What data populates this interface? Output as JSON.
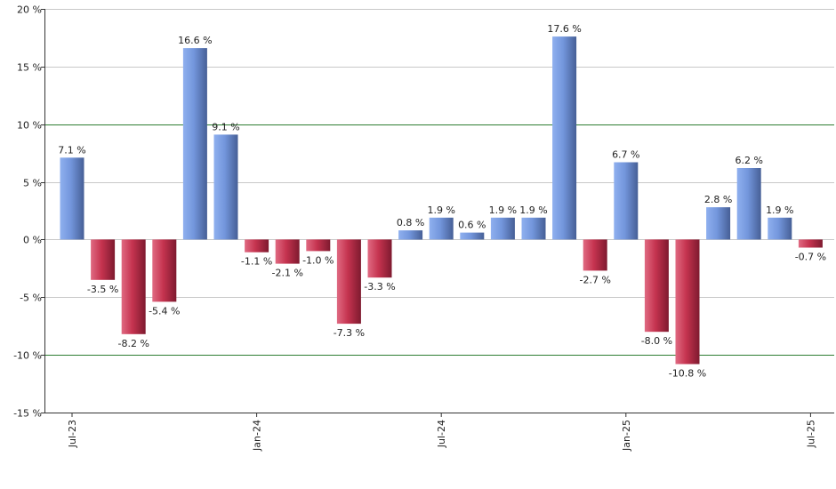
{
  "chart_data": {
    "type": "bar",
    "title": "",
    "xlabel": "",
    "ylabel": "",
    "ylim": [
      -15,
      20
    ],
    "y_ticks": [
      20,
      15,
      10,
      5,
      0,
      -5,
      -10,
      -15
    ],
    "y_tick_suffix": " %",
    "grid": true,
    "highlight_lines": [
      10,
      -10
    ],
    "x_tick_labels": [
      "Jul-23",
      "Jan-24",
      "Jul-24",
      "Jan-25",
      "Jul-25"
    ],
    "x_tick_positions": [
      0,
      6,
      12,
      18,
      24
    ],
    "values": [
      7.1,
      -3.5,
      -8.2,
      -5.4,
      16.6,
      9.1,
      -1.1,
      -2.1,
      -1.0,
      -7.3,
      -3.3,
      0.8,
      1.9,
      0.6,
      1.9,
      1.9,
      17.6,
      -2.7,
      6.7,
      -8.0,
      -10.8,
      2.8,
      6.2,
      1.9,
      -0.7
    ],
    "labels": [
      "7.1 %",
      "-3.5 %",
      "-8.2 %",
      "-5.4 %",
      "16.6 %",
      "9.1 %",
      "-1.1 %",
      "-2.1 %",
      "-1.0 %",
      "-7.3 %",
      "-3.3 %",
      "0.8 %",
      "1.9 %",
      "0.6 %",
      "1.9 %",
      "1.9 %",
      "17.6 %",
      "-2.7 %",
      "6.7 %",
      "-8.0 %",
      "-10.8 %",
      "2.8 %",
      "6.2 %",
      "1.9 %",
      "-0.7 %"
    ],
    "colors": {
      "positive": "#6f8fd6",
      "negative": "#c0304f",
      "grid": "#c8c8c8",
      "highlight": "#2e7d32"
    }
  }
}
